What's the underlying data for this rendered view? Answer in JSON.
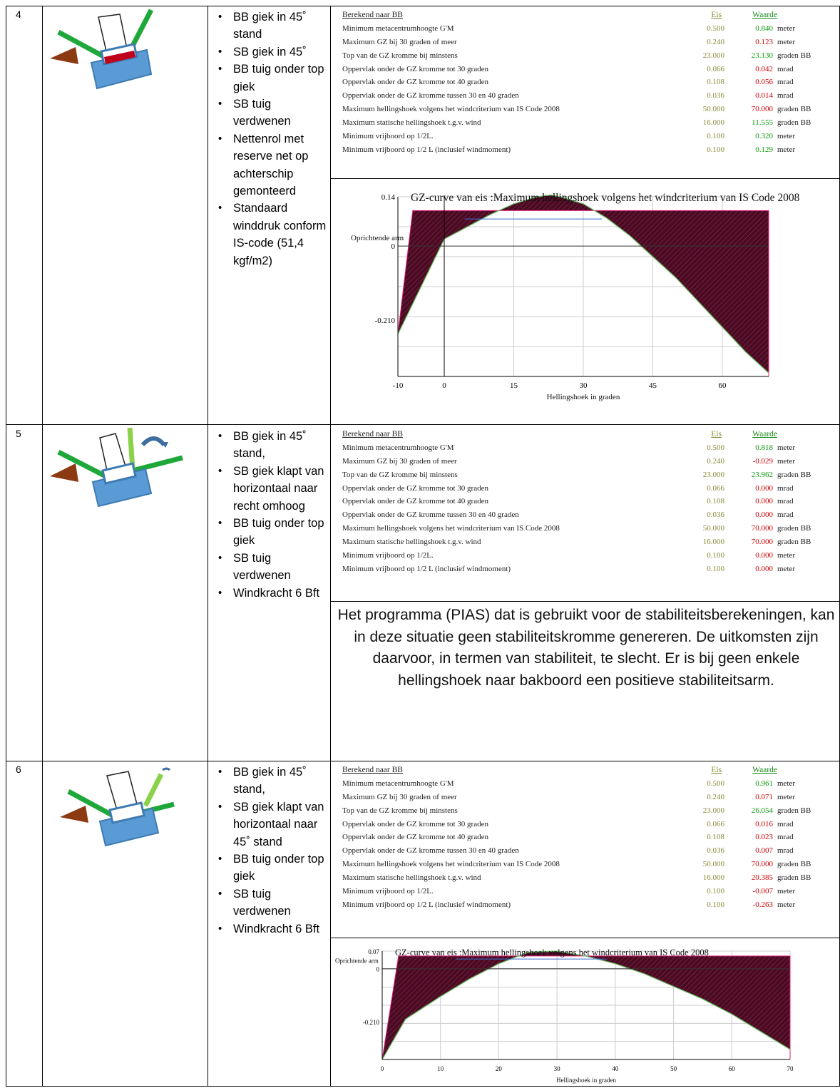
{
  "rows": [
    {
      "number": "4",
      "bullets": [
        "BB giek in 45˚ stand",
        "SB giek in 45˚",
        "BB tuig onder top giek",
        "SB tuig verdwenen",
        "Nettenrol met reserve net op achterschip gemonteerd",
        "Standaard winddruk conform IS-code (51,4 kgf/m2)"
      ],
      "panel": {
        "header": "Berekend naar BB",
        "req_header": "Eis",
        "val_header": "Waarde",
        "criteria": [
          {
            "label": "Minimum metacentrumhoogte G'M",
            "req": "0.500",
            "value": "0.840",
            "unit": "meter",
            "status": "ok"
          },
          {
            "label": "Maximum GZ bij 30 graden of meer",
            "req": "0.240",
            "value": "0.123",
            "unit": "meter",
            "status": "bad"
          },
          {
            "label": "Top van de GZ kromme bij minstens",
            "req": "23.000",
            "value": "23.130",
            "unit": "graden BB",
            "status": "ok"
          },
          {
            "label": "Oppervlak onder de GZ kromme tot 30 graden",
            "req": "0.066",
            "value": "0.042",
            "unit": "mrad",
            "status": "bad"
          },
          {
            "label": "Oppervlak onder de GZ kromme tot 40 graden",
            "req": "0.108",
            "value": "0.056",
            "unit": "mrad",
            "status": "bad"
          },
          {
            "label": "Oppervlak onder de GZ kromme tussen 30 en 40 graden",
            "req": "0.036",
            "value": "0.014",
            "unit": "mrad",
            "status": "bad"
          },
          {
            "label": "Maximum hellingshoek volgens het windcriterium van IS Code 2008",
            "req": "50.000",
            "value": "70.000",
            "unit": "graden BB",
            "status": "bad"
          },
          {
            "label": "Maximum statische hellingshoek t.g.v. wind",
            "req": "16.000",
            "value": "11.555",
            "unit": "graden BB",
            "status": "ok"
          },
          {
            "label": "Minimum vrijboord op 1/2L.",
            "req": "0.100",
            "value": "0.320",
            "unit": "meter",
            "status": "ok"
          },
          {
            "label": "Minimum vrijboord op 1/2 L (inclusief windmoment)",
            "req": "0.100",
            "value": "0.129",
            "unit": "meter",
            "status": "ok"
          }
        ]
      },
      "chart": {
        "title": "GZ-curve van eis :Maximum hellingshoek volgens het windcriterium van IS Code 2008",
        "ylabel": "Oprichtende arm",
        "xlabel": "Hellingshoek in graden",
        "y_tick_labels": [
          "0.14",
          "0",
          "-0.210"
        ],
        "x_tick_labels": [
          "-10",
          "0",
          "15",
          "30",
          "45",
          "60"
        ]
      }
    },
    {
      "number": "5",
      "bullets": [
        "BB giek in 45˚ stand,",
        "SB giek klapt van horizontaal naar recht omhoog",
        "BB tuig onder top giek",
        "SB tuig verdwenen",
        "Windkracht 6 Bft"
      ],
      "panel": {
        "header": "Berekend naar BB",
        "req_header": "Eis",
        "val_header": "Waarde",
        "criteria": [
          {
            "label": "Minimum metacentrumhoogte G'M",
            "req": "0.500",
            "value": "0.818",
            "unit": "meter",
            "status": "ok"
          },
          {
            "label": "Maximum GZ bij 30 graden of meer",
            "req": "0.240",
            "value": "-0.029",
            "unit": "meter",
            "status": "bad"
          },
          {
            "label": "Top van de GZ kromme bij minstens",
            "req": "23.000",
            "value": "23.962",
            "unit": "graden BB",
            "status": "ok"
          },
          {
            "label": "Oppervlak onder de GZ kromme tot 30 graden",
            "req": "0.066",
            "value": "0.000",
            "unit": "mrad",
            "status": "bad"
          },
          {
            "label": "Oppervlak onder de GZ kromme tot 40 graden",
            "req": "0.108",
            "value": "0.000",
            "unit": "mrad",
            "status": "bad"
          },
          {
            "label": "Oppervlak onder de GZ kromme tussen 30 en 40 graden",
            "req": "0.036",
            "value": "0.000",
            "unit": "mrad",
            "status": "bad"
          },
          {
            "label": "Maximum hellingshoek volgens het windcriterium van IS Code 2008",
            "req": "50.000",
            "value": "70.000",
            "unit": "graden BB",
            "status": "bad"
          },
          {
            "label": "Maximum statische hellingshoek t.g.v. wind",
            "req": "16.000",
            "value": "70.000",
            "unit": "graden BB",
            "status": "bad"
          },
          {
            "label": "Minimum vrijboord op 1/2L.",
            "req": "0.100",
            "value": "0.000",
            "unit": "meter",
            "status": "bad"
          },
          {
            "label": "Minimum vrijboord op 1/2 L (inclusief windmoment)",
            "req": "0.100",
            "value": "0.000",
            "unit": "meter",
            "status": "bad"
          }
        ]
      },
      "note": "Het programma (PIAS) dat is gebruikt voor de stabiliteitsberekeningen, kan in deze situatie geen stabiliteitskromme genereren. De uitkomsten zijn daarvoor, in termen van stabiliteit, te slecht. Er is bij geen enkele hellingshoek naar bakboord een positieve stabiliteitsarm."
    },
    {
      "number": "6",
      "bullets": [
        "BB giek in 45˚ stand,",
        "SB giek klapt van horizontaal naar 45˚ stand",
        "BB tuig onder top giek",
        "SB tuig verdwenen",
        "Windkracht 6 Bft"
      ],
      "panel": {
        "header": "Berekend naar BB",
        "req_header": "Eis",
        "val_header": "Waarde",
        "criteria": [
          {
            "label": "Minimum metacentrumhoogte G'M",
            "req": "0.500",
            "value": "0.961",
            "unit": "meter",
            "status": "ok"
          },
          {
            "label": "Maximum GZ bij 30 graden of meer",
            "req": "0.240",
            "value": "0.071",
            "unit": "meter",
            "status": "bad"
          },
          {
            "label": "Top van de GZ kromme bij minstens",
            "req": "23.000",
            "value": "26.054",
            "unit": "graden BB",
            "status": "ok"
          },
          {
            "label": "Oppervlak onder de GZ kromme tot 30 graden",
            "req": "0.066",
            "value": "0.016",
            "unit": "mrad",
            "status": "bad"
          },
          {
            "label": "Oppervlak onder de GZ kromme tot 40 graden",
            "req": "0.108",
            "value": "0.023",
            "unit": "mrad",
            "status": "bad"
          },
          {
            "label": "Oppervlak onder de GZ kromme tussen 30 en 40 graden",
            "req": "0.036",
            "value": "0.007",
            "unit": "mrad",
            "status": "bad"
          },
          {
            "label": "Maximum hellingshoek volgens het windcriterium van IS Code 2008",
            "req": "50.000",
            "value": "70.000",
            "unit": "graden BB",
            "status": "bad"
          },
          {
            "label": "Maximum statische hellingshoek t.g.v. wind",
            "req": "16.000",
            "value": "20.385",
            "unit": "graden BB",
            "status": "bad"
          },
          {
            "label": "Minimum vrijboord op 1/2L.",
            "req": "0.100",
            "value": "-0.007",
            "unit": "meter",
            "status": "bad"
          },
          {
            "label": "Minimum vrijboord op 1/2 L (inclusief windmoment)",
            "req": "0.100",
            "value": "-0.263",
            "unit": "meter",
            "status": "bad"
          }
        ]
      },
      "chart": {
        "title": "GZ-curve van eis :Maximum hellingshoek volgens het windcriterium van IS Code 2008",
        "ylabel": "Oprichtende arm",
        "xlabel": "Hellingshoek in graden",
        "y_tick_labels": [
          "0.07",
          "0",
          "-0.210"
        ],
        "x_tick_labels": [
          "0",
          "10",
          "20",
          "30",
          "40",
          "50",
          "60",
          "70"
        ]
      }
    }
  ],
  "colors": {
    "ok": "#0b9a0b",
    "bad": "#d00000",
    "req": "#8a8a3a",
    "area": "#4a0a22",
    "area_edge": "#e0207a",
    "boat": "#5b9bd5",
    "boom": "#1fa83a",
    "boom_light": "#8bd14a",
    "net": "#8b3a12"
  },
  "chart_data": [
    {
      "type": "area",
      "title": "GZ-curve van eis :Maximum hellingshoek volgens het windcriterium van IS Code 2008",
      "xlabel": "Hellingshoek in graden",
      "ylabel": "Oprichtende arm",
      "x": [
        -10,
        0,
        10,
        15,
        20,
        23,
        25,
        30,
        35,
        40,
        45,
        50,
        55,
        60,
        65,
        70
      ],
      "y": [
        -0.25,
        0.02,
        0.09,
        0.12,
        0.14,
        0.145,
        0.14,
        0.12,
        0.08,
        0.03,
        -0.03,
        -0.09,
        -0.16,
        -0.23,
        -0.3,
        -0.36
      ],
      "xlim": [
        -10,
        70
      ],
      "ylim": [
        -0.37,
        0.14
      ],
      "grid": true
    },
    {
      "type": "area",
      "title": "GZ-curve van eis :Maximum hellingshoek volgens het windcriterium van IS Code 2008",
      "xlabel": "Hellingshoek in graden",
      "ylabel": "Oprichtende arm",
      "x": [
        0,
        4,
        10,
        15,
        20,
        25,
        30,
        35,
        40,
        45,
        50,
        55,
        60,
        65,
        70
      ],
      "y": [
        -0.36,
        -0.2,
        -0.11,
        -0.04,
        0.02,
        0.065,
        0.07,
        0.05,
        0.02,
        -0.02,
        -0.07,
        -0.12,
        -0.18,
        -0.25,
        -0.32
      ],
      "xlim": [
        0,
        70
      ],
      "ylim": [
        -0.36,
        0.07
      ],
      "grid": true
    }
  ]
}
